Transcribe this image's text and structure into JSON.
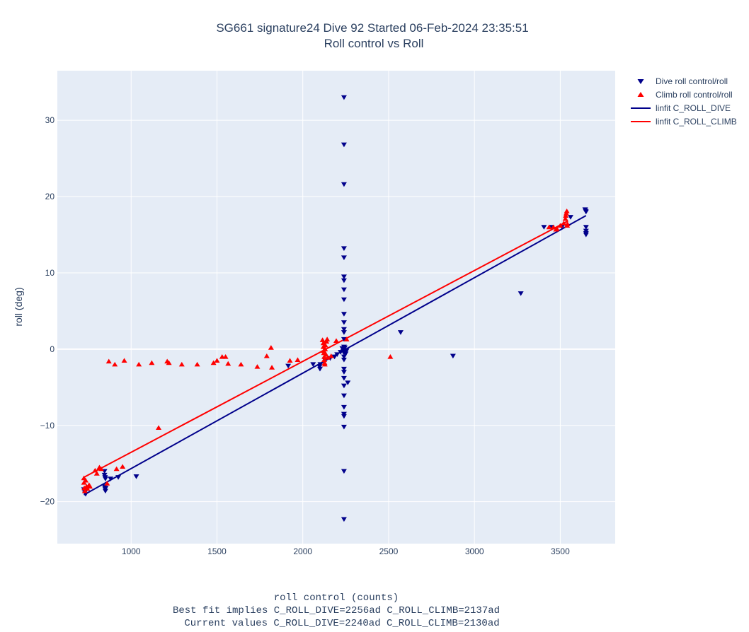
{
  "chart_data": {
    "type": "scatter",
    "title": "SG661 signature24 Dive 92 Started 06-Feb-2024 23:35:51",
    "subtitle": "Roll control vs Roll",
    "xlabel": "roll control (counts)",
    "xlabel_line2": "Best fit implies C_ROLL_DIVE=2256ad C_ROLL_CLIMB=2137ad",
    "xlabel_line3": "Current values C_ROLL_DIVE=2240ad C_ROLL_CLIMB=2130ad",
    "ylabel": "roll (deg)",
    "xlim": [
      570,
      3820
    ],
    "ylim": [
      -25.5,
      36.5
    ],
    "x_ticks": [
      1000,
      1500,
      2000,
      2500,
      3000,
      3500
    ],
    "y_ticks": [
      -20,
      -10,
      0,
      10,
      20,
      30
    ],
    "grid": true,
    "legend_position": "top-right",
    "colors": {
      "dive": "#00008b",
      "climb": "#ff0000",
      "plot_bg": "#e5ecf6",
      "grid": "#ffffff",
      "text": "#2a3f5f"
    },
    "series": [
      {
        "name": "Dive roll control/roll",
        "mode": "markers",
        "marker": "triangle-down",
        "color": "#00008b",
        "points": [
          [
            725,
            -18.4
          ],
          [
            730,
            -18.8
          ],
          [
            735,
            -19.0
          ],
          [
            845,
            -16.0
          ],
          [
            845,
            -16.5
          ],
          [
            848,
            -16.8
          ],
          [
            850,
            -17.0
          ],
          [
            845,
            -18.0
          ],
          [
            848,
            -18.3
          ],
          [
            850,
            -18.6
          ],
          [
            852,
            -18.2
          ],
          [
            880,
            -17.0
          ],
          [
            925,
            -16.8
          ],
          [
            1030,
            -16.7
          ],
          [
            1915,
            -2.2
          ],
          [
            2060,
            -2.0
          ],
          [
            2098,
            -2.3
          ],
          [
            2100,
            -2.6
          ],
          [
            2102,
            -2.0
          ],
          [
            2130,
            -1.5
          ],
          [
            2160,
            -1.2
          ],
          [
            2185,
            -1.0
          ],
          [
            2200,
            -0.7
          ],
          [
            2220,
            -0.4
          ],
          [
            2240,
            33.0
          ],
          [
            2240,
            26.8
          ],
          [
            2240,
            21.6
          ],
          [
            2240,
            13.2
          ],
          [
            2240,
            12.0
          ],
          [
            2240,
            9.5
          ],
          [
            2240,
            9.0
          ],
          [
            2240,
            7.8
          ],
          [
            2240,
            6.5
          ],
          [
            2240,
            4.6
          ],
          [
            2240,
            3.5
          ],
          [
            2240,
            2.6
          ],
          [
            2240,
            2.2
          ],
          [
            2240,
            1.3
          ],
          [
            2240,
            0.3
          ],
          [
            2240,
            0.0
          ],
          [
            2240,
            -0.5
          ],
          [
            2240,
            -1.0
          ],
          [
            2240,
            -1.4
          ],
          [
            2240,
            -2.6
          ],
          [
            2240,
            -3.0
          ],
          [
            2240,
            -3.8
          ],
          [
            2240,
            -4.8
          ],
          [
            2240,
            -6.1
          ],
          [
            2240,
            -7.6
          ],
          [
            2240,
            -8.5
          ],
          [
            2240,
            -8.8
          ],
          [
            2240,
            -10.2
          ],
          [
            2240,
            -16.0
          ],
          [
            2240,
            -22.3
          ],
          [
            2230,
            0.1
          ],
          [
            2235,
            -0.3
          ],
          [
            2245,
            0.2
          ],
          [
            2250,
            -0.6
          ],
          [
            2255,
            -0.2
          ],
          [
            2262,
            -4.4
          ],
          [
            2570,
            2.2
          ],
          [
            2875,
            -0.9
          ],
          [
            3270,
            7.3
          ],
          [
            3405,
            16.0
          ],
          [
            3450,
            16.0
          ],
          [
            3510,
            16.0
          ],
          [
            3560,
            17.3
          ],
          [
            3645,
            18.3
          ],
          [
            3648,
            18.1
          ],
          [
            3650,
            18.0
          ],
          [
            3650,
            16.0
          ],
          [
            3650,
            15.5
          ],
          [
            3650,
            15.2
          ],
          [
            3650,
            15.0
          ]
        ]
      },
      {
        "name": "Climb roll control/roll",
        "mode": "markers",
        "marker": "triangle-up",
        "color": "#ff0000",
        "points": [
          [
            725,
            -16.9
          ],
          [
            725,
            -17.5
          ],
          [
            727,
            -18.2
          ],
          [
            730,
            -18.6
          ],
          [
            735,
            -17.2
          ],
          [
            740,
            -18.0
          ],
          [
            745,
            -18.3
          ],
          [
            755,
            -17.8
          ],
          [
            760,
            -18.0
          ],
          [
            790,
            -15.9
          ],
          [
            800,
            -16.3
          ],
          [
            815,
            -15.5
          ],
          [
            825,
            -15.7
          ],
          [
            860,
            -17.6
          ],
          [
            870,
            -1.6
          ],
          [
            905,
            -2.0
          ],
          [
            915,
            -15.7
          ],
          [
            950,
            -15.4
          ],
          [
            960,
            -1.5
          ],
          [
            1045,
            -2.0
          ],
          [
            1120,
            -1.8
          ],
          [
            1160,
            -10.3
          ],
          [
            1210,
            -1.6
          ],
          [
            1220,
            -1.8
          ],
          [
            1295,
            -2.0
          ],
          [
            1385,
            -2.0
          ],
          [
            1480,
            -1.8
          ],
          [
            1500,
            -1.5
          ],
          [
            1530,
            -1.0
          ],
          [
            1550,
            -1.0
          ],
          [
            1565,
            -1.9
          ],
          [
            1640,
            -2.0
          ],
          [
            1735,
            -2.3
          ],
          [
            1790,
            -0.9
          ],
          [
            1815,
            0.2
          ],
          [
            1820,
            -2.4
          ],
          [
            1925,
            -1.5
          ],
          [
            1970,
            -1.4
          ],
          [
            2115,
            1.2
          ],
          [
            2120,
            0.8
          ],
          [
            2120,
            0.3
          ],
          [
            2122,
            -0.2
          ],
          [
            2123,
            -0.5
          ],
          [
            2125,
            -1.0
          ],
          [
            2125,
            -1.4
          ],
          [
            2127,
            -1.8
          ],
          [
            2128,
            -2.0
          ],
          [
            2130,
            0.0
          ],
          [
            2132,
            0.5
          ],
          [
            2135,
            -0.7
          ],
          [
            2138,
            1.0
          ],
          [
            2142,
            1.3
          ],
          [
            2145,
            -1.1
          ],
          [
            2165,
            -0.9
          ],
          [
            2195,
            1.1
          ],
          [
            2255,
            1.3
          ],
          [
            2510,
            -1.0
          ],
          [
            3435,
            16.0
          ],
          [
            3460,
            16.0
          ],
          [
            3475,
            15.7
          ],
          [
            3480,
            15.8
          ],
          [
            3500,
            16.2
          ],
          [
            3520,
            16.5
          ],
          [
            3530,
            17.1
          ],
          [
            3532,
            17.5
          ],
          [
            3535,
            17.8
          ],
          [
            3538,
            18.1
          ],
          [
            3540,
            16.2
          ],
          [
            3542,
            16.4
          ]
        ]
      },
      {
        "name": "linfit C_ROLL_DIVE",
        "mode": "line",
        "color": "#00008b",
        "points": [
          [
            725,
            -19.1
          ],
          [
            3650,
            17.5
          ]
        ]
      },
      {
        "name": "linfit C_ROLL_CLIMB",
        "mode": "line",
        "color": "#ff0000",
        "points": [
          [
            725,
            -16.8
          ],
          [
            3545,
            16.8
          ]
        ]
      }
    ]
  }
}
